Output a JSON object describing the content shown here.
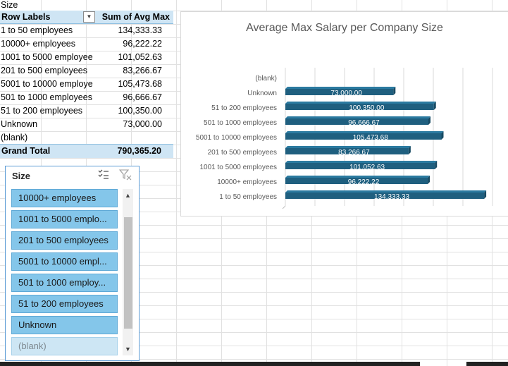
{
  "pivot": {
    "above_label": "Size",
    "header": {
      "row_labels": "Row Labels",
      "value_col": "Sum of Avg Max"
    },
    "rows": [
      {
        "label": "1 to 50 employees",
        "value": "134,333.33"
      },
      {
        "label": "10000+ employees",
        "value": "96,222.22"
      },
      {
        "label": "1001 to 5000 employee",
        "value": "101,052.63"
      },
      {
        "label": "201 to 500 employees",
        "value": "83,266.67"
      },
      {
        "label": "5001 to 10000 employe",
        "value": "105,473.68"
      },
      {
        "label": "501 to 1000 employees",
        "value": "96,666.67"
      },
      {
        "label": "51 to 200 employees",
        "value": "100,350.00"
      },
      {
        "label": "Unknown",
        "value": "73,000.00"
      },
      {
        "label": "(blank)",
        "value": ""
      }
    ],
    "total": {
      "label": "Grand Total",
      "value": "790,365.20"
    },
    "dropdown_icon": "filter-dropdown-icon"
  },
  "chart": {
    "title": "Average Max Salary per Company Size",
    "colors": {
      "bar": "#1f5f7f",
      "bar_side": "#174a63",
      "label": "#ffffff",
      "axis": "#595959"
    }
  },
  "chart_data": {
    "type": "bar",
    "orientation": "horizontal",
    "title": "Average Max Salary per Company Size",
    "categories": [
      "(blank)",
      "Unknown",
      "51 to 200 employees",
      "501 to 1000 employees",
      "5001 to 10000 employees",
      "201 to 500 employees",
      "1001 to 5000 employees",
      "10000+ employees",
      "1 to 50 employees"
    ],
    "values": [
      null,
      73000.0,
      100350.0,
      96666.67,
      105473.68,
      83266.67,
      101052.63,
      96222.22,
      134333.33
    ],
    "data_labels": [
      "",
      "73,000.00",
      "100,350.00",
      "96,666.67",
      "105,473.68",
      "83,266.67",
      "101,052.63",
      "96,222.22",
      "134,333.33"
    ],
    "legend": "none",
    "grid": true
  },
  "slicer": {
    "title": "Size",
    "multiselect_icon": "multi-select-icon",
    "clear_filter_icon": "clear-filter-icon",
    "items": [
      {
        "label": "10000+ employees",
        "state": "selected"
      },
      {
        "label": "1001 to 5000 emplo...",
        "state": "selected"
      },
      {
        "label": "201 to 500 employees",
        "state": "selected"
      },
      {
        "label": "5001 to 10000 empl...",
        "state": "selected"
      },
      {
        "label": "501 to 1000 employ...",
        "state": "selected"
      },
      {
        "label": "51 to 200 employees",
        "state": "selected"
      },
      {
        "label": "Unknown",
        "state": "selected"
      },
      {
        "label": "(blank)",
        "state": "nodata"
      }
    ]
  }
}
